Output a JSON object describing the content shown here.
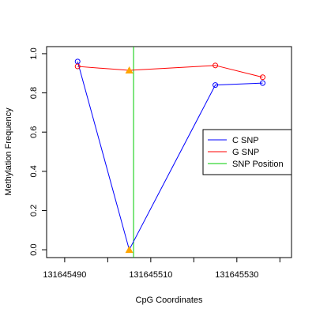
{
  "chart_data": {
    "type": "line",
    "xlabel": "CpG Coordinates",
    "ylabel": "Methylation Frequency",
    "x": [
      131645493,
      131645505,
      131645525,
      131645536
    ],
    "series": [
      {
        "name": "C SNP",
        "color": "#0000ff",
        "values": [
          0.96,
          0.0,
          0.84,
          0.85
        ],
        "markers": [
          "circle",
          "triangle",
          "circle",
          "circle"
        ]
      },
      {
        "name": "G SNP",
        "color": "#ff0000",
        "values": [
          0.935,
          0.915,
          0.94,
          0.88
        ],
        "markers": [
          "circle",
          "triangle",
          "circle",
          "circle"
        ]
      }
    ],
    "snp_position": {
      "name": "SNP Position",
      "color": "#00cc00",
      "x": 131645506
    },
    "triangle_color": "#ffa500",
    "xlim": [
      131645485.8,
      131645542.7
    ],
    "ylim": [
      -0.04,
      1.036
    ],
    "xticks": [
      131645490,
      131645510,
      131645530
    ],
    "xminor_ticks": [
      131645500,
      131645520,
      131645540
    ],
    "yticks": [
      {
        "value": 0,
        "label": "0.0"
      },
      {
        "value": 0.2,
        "label": "0.2"
      },
      {
        "value": 0.4,
        "label": "0.4"
      },
      {
        "value": 0.6,
        "label": "0.6"
      },
      {
        "value": 0.8,
        "label": "0.8"
      },
      {
        "value": 1,
        "label": "1.0"
      }
    ],
    "legend": "right"
  }
}
